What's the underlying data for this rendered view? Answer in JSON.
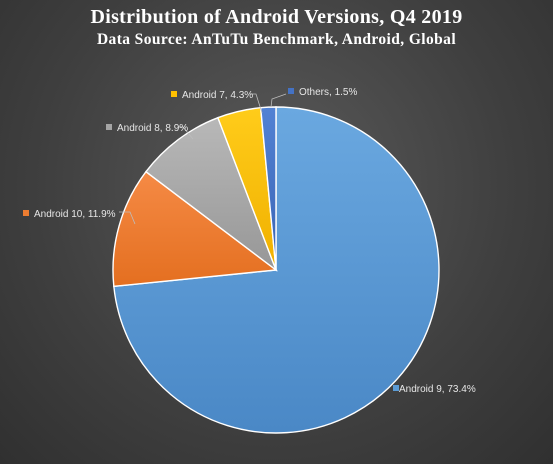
{
  "chart_data": {
    "type": "pie",
    "title": "Distribution of Android Versions, Q4 2019",
    "subtitle": "Data Source: AnTuTu Benchmark, Android, Global",
    "slices": [
      {
        "label": "Android 9",
        "value": 73.4,
        "display": "Android 9, 73.4%",
        "color": "#5b9bd5"
      },
      {
        "label": "Android 10",
        "value": 11.9,
        "display": "Android 10, 11.9%",
        "color": "#ed7d31"
      },
      {
        "label": "Android 8",
        "value": 8.9,
        "display": "Android 8, 8.9%",
        "color": "#a5a5a5"
      },
      {
        "label": "Android 7",
        "value": 4.3,
        "display": "Android 7, 4.3%",
        "color": "#ffc000"
      },
      {
        "label": "Others",
        "value": 1.5,
        "display": "Others, 1.5%",
        "color": "#4472c4"
      }
    ],
    "start_angle_from_top_clockwise_deg": 0,
    "legend": "none",
    "data_labels": "outside-with-leader-lines"
  }
}
